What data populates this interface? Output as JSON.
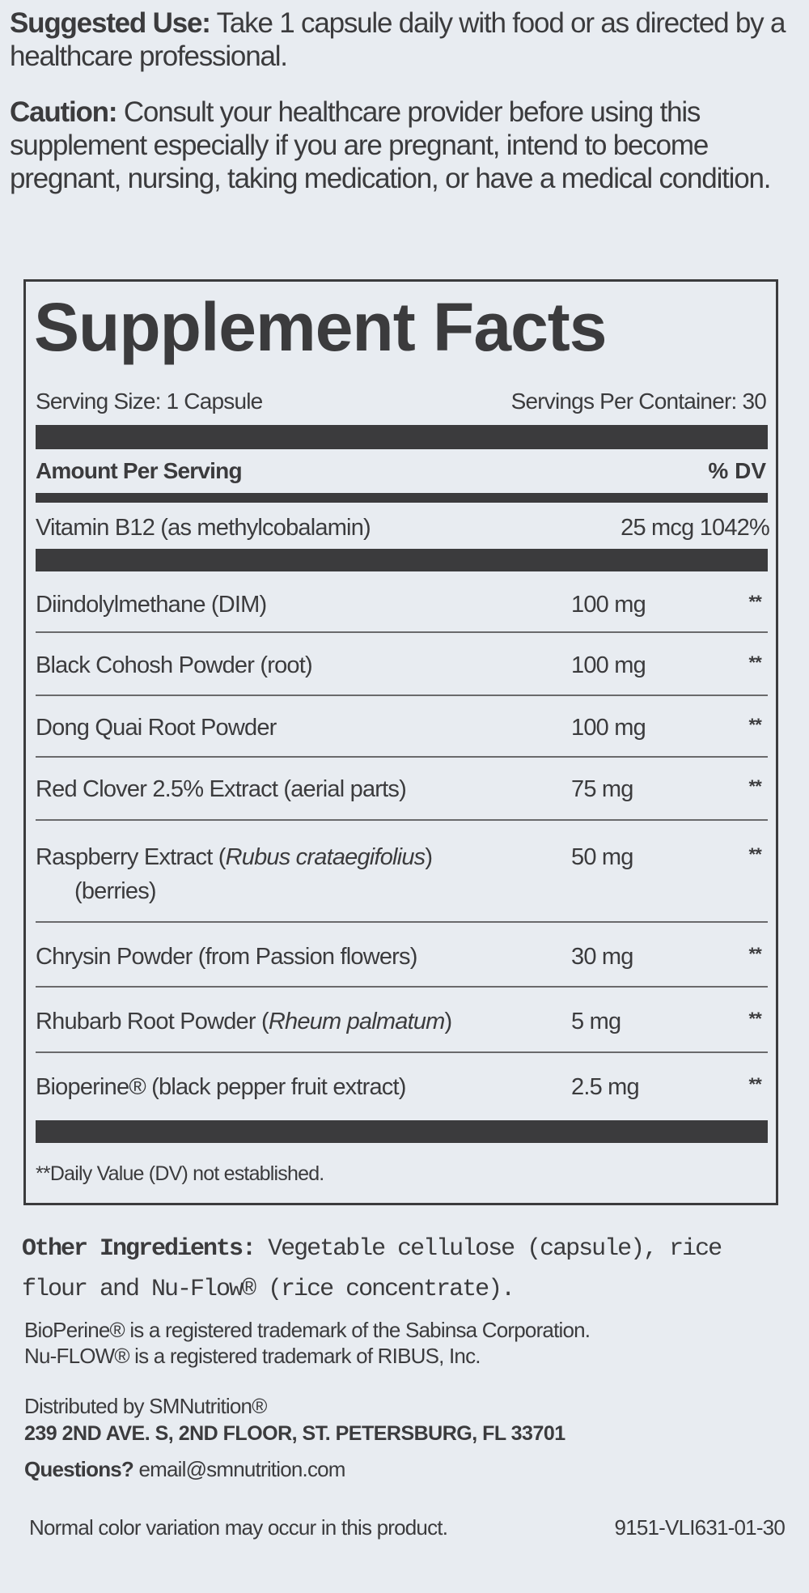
{
  "suggested_use": {
    "label": "Suggested Use:",
    "text": " Take 1 capsule daily with food or as directed by a healthcare professional."
  },
  "caution": {
    "label": "Caution:",
    "text": " Consult your healthcare provider before using this supplement especially if you are pregnant, intend to become pregnant, nursing, taking medication, or have a medical condition."
  },
  "facts": {
    "title": "Supplement Facts",
    "serving_size": "Serving Size: 1 Capsule",
    "servings_per_container": "Servings Per Container: 30",
    "amount_header": "Amount Per Serving",
    "dv_header": "% DV",
    "vitamin": {
      "name": "Vitamin B12 (as methylcobalamin)",
      "amount": "25 mcg 1042%"
    },
    "rows": [
      {
        "name": "Diindolylmethane (DIM)",
        "amount": "100 mg",
        "dv": "**"
      },
      {
        "name": "Black Cohosh Powder (root)",
        "amount": "100 mg",
        "dv": "**"
      },
      {
        "name": "Dong Quai Root Powder",
        "amount": "100 mg",
        "dv": "**"
      },
      {
        "name": "Red Clover 2.5% Extract (aerial parts)",
        "amount": "75 mg",
        "dv": "**"
      },
      {
        "name": "Raspberry Extract (",
        "italic": "Rubus crataegifolius",
        "name_end": ")",
        "name_line2": "(berries)",
        "amount": "50 mg",
        "dv": "**"
      },
      {
        "name": "Chrysin Powder (from Passion flowers)",
        "amount": "30 mg",
        "dv": "**"
      },
      {
        "name": "Rhubarb Root Powder  (",
        "italic": "Rheum palmatum",
        "name_end": ")",
        "amount": "5 mg",
        "dv": "**"
      },
      {
        "name": "Bioperine® (black pepper fruit extract)",
        "amount": "2.5 mg",
        "dv": "**"
      }
    ],
    "footnote": "**Daily Value (DV) not established."
  },
  "other_ingredients": {
    "label": "Other Ingredients:",
    "text": " Vegetable cellulose (capsule), rice flour and Nu-Flow® (rice concentrate)."
  },
  "trademarks": [
    "BioPerine® is a registered trademark of the Sabinsa Corporation.",
    "Nu-FLOW® is a registered trademark of RIBUS, Inc."
  ],
  "distributor": {
    "line1": "Distributed by SMNutrition®",
    "address": "239 2ND AVE. S, 2ND FLOOR, ST. PETERSBURG, FL 33701",
    "questions_label": "Questions?",
    "email": " email@smnutrition.com"
  },
  "footer": {
    "note": "Normal color variation may occur in this product.",
    "code": "9151-VLI631-01-30"
  }
}
